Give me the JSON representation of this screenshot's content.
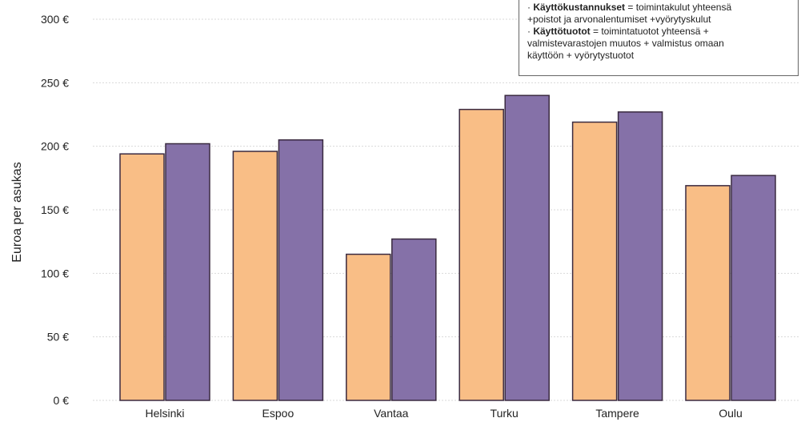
{
  "chart_data": {
    "type": "bar",
    "categories": [
      "Helsinki",
      "Espoo",
      "Vantaa",
      "Turku",
      "Tampere",
      "Oulu"
    ],
    "series": [
      {
        "values": [
          194,
          196,
          115,
          229,
          219,
          169
        ],
        "color": "#f9be86"
      },
      {
        "values": [
          202,
          205,
          127,
          240,
          227,
          177
        ],
        "color": "#8571a8"
      }
    ],
    "ylabel": "Euroa per asukas",
    "ylim": [
      0,
      300
    ],
    "yticks": [
      0,
      50,
      100,
      150,
      200,
      250,
      300
    ],
    "ytick_suffix": " €",
    "grid": true,
    "grid_color": "#d9d9d9"
  },
  "note": {
    "line1_term": "Käyttökustannukset",
    "line1_rest": " = toimintakulut yhteensä",
    "line2": "+poistot ja arvonalentumiset +vyörytyskulut",
    "line3_term": "Käyttötuotot",
    "line3_rest": " = toimintatuotot yhteensä +",
    "line4": "valmistevarastojen muutos + valmistus omaan",
    "line5": "käyttöön + vyörytystuotot"
  }
}
